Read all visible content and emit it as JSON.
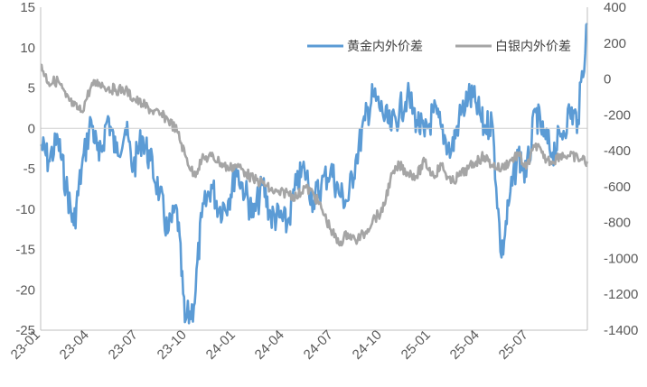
{
  "chart_data": {
    "type": "line",
    "title": "",
    "x": [
      "23-01",
      "23-04",
      "23-07",
      "23-10",
      "24-01",
      "24-04",
      "24-07",
      "24-10",
      "25-01",
      "25-04",
      "25-07"
    ],
    "x_start": "2023-01",
    "x_end": "2025-09",
    "left_axis": {
      "ylim": [
        -25,
        15
      ],
      "ticks": [
        15,
        10,
        5,
        0,
        -5,
        -10,
        -15,
        -20,
        -25
      ],
      "tick_labels": [
        "15",
        "10",
        "5",
        "0",
        "-5",
        "-10",
        "-15",
        "-20",
        "-25"
      ]
    },
    "right_axis": {
      "ylim": [
        -1400,
        400
      ],
      "ticks": [
        400,
        200,
        0,
        -200,
        -400,
        -600,
        -800,
        -1000,
        -1200,
        -1400
      ],
      "tick_labels": [
        "400",
        "200",
        "0",
        "-200",
        "-400",
        "-600",
        "-800",
        "-1000",
        "-1200",
        "-1400"
      ]
    },
    "zero_line": true,
    "grid": false,
    "legend_position": "top-right",
    "series": [
      {
        "name": "黄金内外价差",
        "axis": "left",
        "color": "#5B9BD5",
        "points": [
          [
            "2023-01",
            -2
          ],
          [
            "2023-01-15",
            -4
          ],
          [
            "2023-02",
            -1.5
          ],
          [
            "2023-02-15",
            -7
          ],
          [
            "2023-03",
            -12
          ],
          [
            "2023-03-15",
            -5
          ],
          [
            "2023-04",
            1
          ],
          [
            "2023-04-15",
            -4
          ],
          [
            "2023-05",
            1.5
          ],
          [
            "2023-05-15",
            -3
          ],
          [
            "2023-06",
            0
          ],
          [
            "2023-06-15",
            -5
          ],
          [
            "2023-07",
            -1
          ],
          [
            "2023-07-15",
            -4
          ],
          [
            "2023-08",
            -8
          ],
          [
            "2023-08-15",
            -13
          ],
          [
            "2023-09",
            -10
          ],
          [
            "2023-09-15",
            -24
          ],
          [
            "2023-10",
            -22
          ],
          [
            "2023-10-15",
            -11
          ],
          [
            "2023-11",
            -7
          ],
          [
            "2023-11-15",
            -10
          ],
          [
            "2023-12",
            -9
          ],
          [
            "2023-12-15",
            -5
          ],
          [
            "2024-01",
            -8
          ],
          [
            "2024-01-15",
            -11
          ],
          [
            "2024-02",
            -7
          ],
          [
            "2024-02-15",
            -11
          ],
          [
            "2024-03",
            -11
          ],
          [
            "2024-03-15",
            -12
          ],
          [
            "2024-04",
            -7
          ],
          [
            "2024-04-15",
            -5
          ],
          [
            "2024-05",
            -9
          ],
          [
            "2024-05-15",
            -7
          ],
          [
            "2024-06",
            -5
          ],
          [
            "2024-06-15",
            -8
          ],
          [
            "2024-07",
            -9
          ],
          [
            "2024-07-15",
            -4
          ],
          [
            "2024-08",
            1
          ],
          [
            "2024-08-15",
            4
          ],
          [
            "2024-09",
            2
          ],
          [
            "2024-09-15",
            0
          ],
          [
            "2024-10",
            2
          ],
          [
            "2024-10-15",
            4
          ],
          [
            "2024-11",
            1
          ],
          [
            "2024-11-15",
            -1
          ],
          [
            "2024-12",
            2
          ],
          [
            "2024-12-15",
            0
          ],
          [
            "2025-01",
            -3
          ],
          [
            "2025-01-15",
            1
          ],
          [
            "2025-02",
            4
          ],
          [
            "2025-02-15",
            3
          ],
          [
            "2025-03",
            0
          ],
          [
            "2025-03-15",
            1
          ],
          [
            "2025-04",
            -16
          ],
          [
            "2025-04-15",
            -9
          ],
          [
            "2025-05",
            -3
          ],
          [
            "2025-05-15",
            -6
          ],
          [
            "2025-06",
            2
          ],
          [
            "2025-06-15",
            -1
          ],
          [
            "2025-07",
            -3
          ],
          [
            "2025-07-15",
            -1
          ],
          [
            "2025-08",
            2
          ],
          [
            "2025-08-15",
            1
          ],
          [
            "2025-09",
            13
          ]
        ]
      },
      {
        "name": "白银内外价差",
        "axis": "right",
        "color": "#A5A5A5",
        "points": [
          [
            "2023-01",
            80
          ],
          [
            "2023-01-15",
            -20
          ],
          [
            "2023-02",
            -10
          ],
          [
            "2023-02-15",
            -100
          ],
          [
            "2023-03",
            -150
          ],
          [
            "2023-03-15",
            -180
          ],
          [
            "2023-04",
            -40
          ],
          [
            "2023-04-15",
            -20
          ],
          [
            "2023-05",
            -50
          ],
          [
            "2023-05-15",
            -60
          ],
          [
            "2023-06",
            -60
          ],
          [
            "2023-06-15",
            -110
          ],
          [
            "2023-07",
            -140
          ],
          [
            "2023-07-15",
            -170
          ],
          [
            "2023-08",
            -200
          ],
          [
            "2023-08-15",
            -220
          ],
          [
            "2023-09",
            -290
          ],
          [
            "2023-09-15",
            -420
          ],
          [
            "2023-10",
            -540
          ],
          [
            "2023-10-15",
            -450
          ],
          [
            "2023-11",
            -430
          ],
          [
            "2023-11-15",
            -460
          ],
          [
            "2023-12",
            -500
          ],
          [
            "2023-12-15",
            -480
          ],
          [
            "2024-01",
            -520
          ],
          [
            "2024-01-15",
            -560
          ],
          [
            "2024-02",
            -580
          ],
          [
            "2024-02-15",
            -620
          ],
          [
            "2024-03",
            -640
          ],
          [
            "2024-03-15",
            -630
          ],
          [
            "2024-04",
            -660
          ],
          [
            "2024-04-15",
            -600
          ],
          [
            "2024-05",
            -640
          ],
          [
            "2024-05-15",
            -720
          ],
          [
            "2024-06",
            -840
          ],
          [
            "2024-06-15",
            -920
          ],
          [
            "2024-07",
            -860
          ],
          [
            "2024-07-15",
            -900
          ],
          [
            "2024-08",
            -860
          ],
          [
            "2024-08-15",
            -780
          ],
          [
            "2024-09",
            -740
          ],
          [
            "2024-09-15",
            -560
          ],
          [
            "2024-10",
            -480
          ],
          [
            "2024-10-15",
            -520
          ],
          [
            "2024-11",
            -540
          ],
          [
            "2024-11-15",
            -460
          ],
          [
            "2024-12",
            -540
          ],
          [
            "2024-12-15",
            -480
          ],
          [
            "2025-01",
            -580
          ],
          [
            "2025-01-15",
            -540
          ],
          [
            "2025-02",
            -500
          ],
          [
            "2025-02-15",
            -460
          ],
          [
            "2025-03",
            -430
          ],
          [
            "2025-03-15",
            -480
          ],
          [
            "2025-04",
            -500
          ],
          [
            "2025-04-15",
            -460
          ],
          [
            "2025-05",
            -420
          ],
          [
            "2025-05-15",
            -500
          ],
          [
            "2025-06",
            -360
          ],
          [
            "2025-06-15",
            -440
          ],
          [
            "2025-07",
            -460
          ],
          [
            "2025-07-15",
            -420
          ],
          [
            "2025-08",
            -430
          ],
          [
            "2025-08-15",
            -440
          ],
          [
            "2025-09",
            -460
          ]
        ]
      }
    ]
  }
}
